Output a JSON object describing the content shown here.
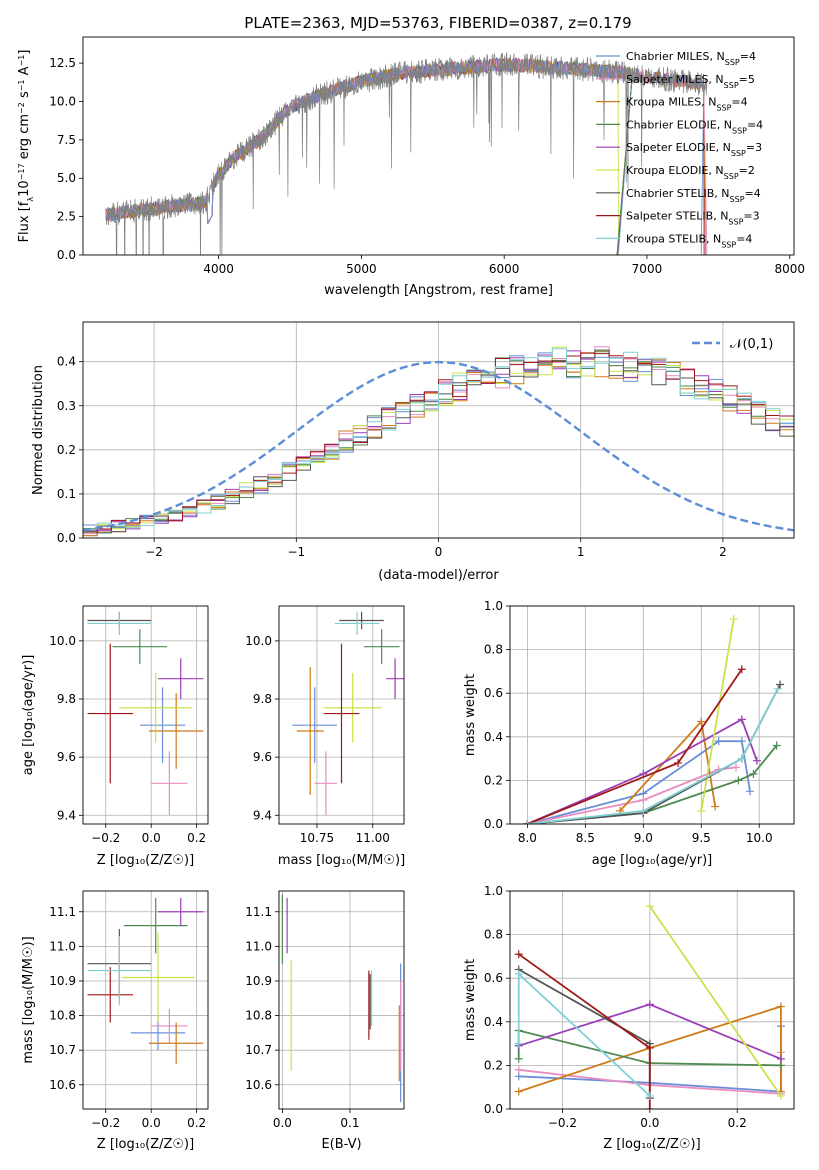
{
  "figure": {
    "title": "PLATE=2363, MJD=53763, FIBERID=0387, z=0.179"
  },
  "series_names": [
    "Chabrier MILES, N_SSP=4",
    "Salpeter MILES, N_SSP=5",
    "Kroupa MILES, N_SSP=4",
    "Chabrier ELODIE, N_SSP=4",
    "Salpeter ELODIE, N_SSP=3",
    "Kroupa ELODIE, N_SSP=2",
    "Chabrier STELIB, N_SSP=4",
    "Salpeter STELIB, N_SSP=3",
    "Kroupa STELIB, N_SSP=4"
  ],
  "series_colors": [
    "#6a8fd8",
    "#e98cc0",
    "#d07a1a",
    "#4e8a4e",
    "#9b3eb8",
    "#c9e24a",
    "#555555",
    "#a01818",
    "#7fd0d4"
  ],
  "chart_data": [
    {
      "type": "line",
      "title": "PLATE=2363, MJD=53763, FIBERID=0387, z=0.179",
      "xlabel": "wavelength [Angstrom, rest frame]",
      "ylabel": "Flux [f_λ 10^-17 erg cm^-2 s^-1 A^-1]",
      "xlim": [
        3050,
        8030
      ],
      "ylim": [
        0,
        14.2
      ],
      "xticks": [
        4000,
        5000,
        6000,
        7000,
        8000
      ],
      "yticks": [
        0.0,
        2.5,
        5.0,
        7.5,
        10.0,
        12.5
      ],
      "grid": false,
      "legend": "upper-right",
      "data_color": "#808080",
      "continuum": {
        "x": [
          3200,
          3500,
          3700,
          3900,
          4000,
          4100,
          4300,
          4500,
          4700,
          5000,
          5300,
          5600,
          6000,
          6400,
          6800,
          7000,
          7400
        ],
        "y": [
          2.6,
          3.0,
          3.2,
          3.4,
          5.2,
          6.3,
          7.6,
          9.6,
          10.4,
          11.3,
          11.9,
          12.1,
          12.4,
          12.2,
          11.9,
          11.6,
          11.1
        ]
      },
      "model_x_end": [
        7400,
        7400,
        7400,
        6900,
        6900,
        6800,
        6900,
        7400,
        6900
      ],
      "end_drop_x": [
        7380,
        7420,
        7410,
        6790,
        6795,
        6800,
        6790,
        7400,
        6800
      ]
    },
    {
      "type": "bar",
      "xlabel": "(data-model)/error",
      "ylabel": "Normed distribution",
      "xlim": [
        -2.5,
        2.5
      ],
      "ylim": [
        0,
        0.49
      ],
      "xticks": [
        -2,
        -1,
        0,
        1,
        2
      ],
      "yticks": [
        0.0,
        0.1,
        0.2,
        0.3,
        0.4
      ],
      "grid": true,
      "legend_label": "𝒩(0,1)",
      "legend_color": "#5b8ed6",
      "bin_width": 0.1,
      "bin_start": -2.5,
      "base_density": [
        0.018,
        0.022,
        0.027,
        0.032,
        0.038,
        0.045,
        0.053,
        0.061,
        0.071,
        0.082,
        0.094,
        0.107,
        0.121,
        0.136,
        0.151,
        0.167,
        0.184,
        0.201,
        0.218,
        0.235,
        0.252,
        0.269,
        0.285,
        0.301,
        0.316,
        0.33,
        0.343,
        0.355,
        0.366,
        0.375,
        0.383,
        0.39,
        0.395,
        0.398,
        0.399,
        0.399,
        0.398,
        0.395,
        0.39,
        0.383,
        0.375,
        0.366,
        0.355,
        0.343,
        0.33,
        0.316,
        0.301,
        0.285,
        0.269,
        0.252,
        0.235,
        0.218,
        0.201,
        0.184,
        0.167,
        0.151,
        0.136,
        0.121,
        0.107,
        0.094,
        0.082,
        0.071,
        0.061,
        0.053,
        0.045,
        0.038,
        0.032,
        0.027,
        0.022,
        0.018
      ]
    },
    {
      "type": "scatter",
      "xlabel": "Z [log10(Z/Z⊙)]",
      "ylabel": "age [log10(age/yr)]",
      "xlim": [
        -0.3,
        0.25
      ],
      "ylim": [
        9.37,
        10.12
      ],
      "xticks": [
        -0.2,
        0.0,
        0.2
      ],
      "yticks": [
        9.4,
        9.6,
        9.8,
        10.0
      ],
      "grid": true,
      "points": [
        {
          "s": 0,
          "x": 0.05,
          "y": 9.71,
          "xe": 0.1,
          "ye": 0.13
        },
        {
          "s": 1,
          "x": 0.08,
          "y": 9.51,
          "xe": 0.08,
          "ye": 0.11
        },
        {
          "s": 2,
          "x": 0.11,
          "y": 9.69,
          "xe": 0.12,
          "ye": 0.13
        },
        {
          "s": 3,
          "x": -0.05,
          "y": 9.98,
          "xe": 0.12,
          "ye": 0.06
        },
        {
          "s": 4,
          "x": 0.13,
          "y": 9.87,
          "xe": 0.1,
          "ye": 0.07
        },
        {
          "s": 5,
          "x": 0.02,
          "y": 9.77,
          "xe": 0.16,
          "ye": 0.12
        },
        {
          "s": 6,
          "x": -0.14,
          "y": 10.07,
          "xe": 0.14,
          "ye": 0.03
        },
        {
          "s": 7,
          "x": -0.18,
          "y": 9.75,
          "xe": 0.1,
          "ye": 0.24
        },
        {
          "s": 8,
          "x": -0.14,
          "y": 10.06,
          "xe": 0.14,
          "ye": 0.04
        }
      ]
    },
    {
      "type": "scatter",
      "xlabel": "mass [log10(M/M⊙)]",
      "ylabel": "",
      "xlim": [
        10.58,
        11.14
      ],
      "ylim": [
        9.37,
        10.12
      ],
      "xticks": [
        10.75,
        11.0
      ],
      "yticks": [
        9.4,
        9.6,
        9.8,
        10.0
      ],
      "grid": true,
      "points": [
        {
          "s": 0,
          "x": 10.74,
          "y": 9.71,
          "xe": 0.1,
          "ye": 0.13
        },
        {
          "s": 1,
          "x": 10.79,
          "y": 9.51,
          "xe": 0.05,
          "ye": 0.11
        },
        {
          "s": 2,
          "x": 10.72,
          "y": 9.69,
          "xe": 0.06,
          "ye": 0.22
        },
        {
          "s": 3,
          "x": 11.04,
          "y": 9.98,
          "xe": 0.08,
          "ye": 0.06
        },
        {
          "s": 4,
          "x": 11.1,
          "y": 9.87,
          "xe": 0.04,
          "ye": 0.07
        },
        {
          "s": 5,
          "x": 10.91,
          "y": 9.77,
          "xe": 0.13,
          "ye": 0.12
        },
        {
          "s": 6,
          "x": 10.95,
          "y": 10.07,
          "xe": 0.1,
          "ye": 0.03
        },
        {
          "s": 7,
          "x": 10.86,
          "y": 9.75,
          "xe": 0.08,
          "ye": 0.24
        },
        {
          "s": 8,
          "x": 10.93,
          "y": 10.06,
          "xe": 0.1,
          "ye": 0.04
        }
      ]
    },
    {
      "type": "line",
      "xlabel": "age [log10(age/yr)]",
      "ylabel": "mass weight",
      "xlim": [
        7.85,
        10.3
      ],
      "ylim": [
        0,
        1.0
      ],
      "xticks": [
        8.0,
        8.5,
        9.0,
        9.5,
        10.0
      ],
      "yticks": [
        0.0,
        0.2,
        0.4,
        0.6,
        0.8,
        1.0
      ],
      "grid": true,
      "series": [
        {
          "s": 0,
          "x": [
            8.0,
            9.0,
            9.65,
            9.85,
            9.92
          ],
          "y": [
            0.0,
            0.14,
            0.38,
            0.38,
            0.15
          ]
        },
        {
          "s": 1,
          "x": [
            8.0,
            9.0,
            9.65,
            9.8
          ],
          "y": [
            0.0,
            0.11,
            0.25,
            0.26
          ]
        },
        {
          "s": 2,
          "x": [
            8.8,
            9.5,
            9.62
          ],
          "y": [
            0.06,
            0.47,
            0.08
          ]
        },
        {
          "s": 3,
          "x": [
            8.0,
            9.0,
            9.82,
            9.95,
            10.15
          ],
          "y": [
            0.0,
            0.05,
            0.2,
            0.23,
            0.36
          ]
        },
        {
          "s": 4,
          "x": [
            8.0,
            9.0,
            9.85,
            9.98
          ],
          "y": [
            0.0,
            0.23,
            0.48,
            0.29
          ]
        },
        {
          "s": 5,
          "x": [
            9.5,
            9.78
          ],
          "y": [
            0.06,
            0.94
          ]
        },
        {
          "s": 6,
          "x": [
            8.0,
            9.0,
            9.85,
            10.18
          ],
          "y": [
            0.0,
            0.05,
            0.3,
            0.64
          ]
        },
        {
          "s": 7,
          "x": [
            8.0,
            9.3,
            9.85
          ],
          "y": [
            0.0,
            0.28,
            0.71
          ]
        },
        {
          "s": 8,
          "x": [
            8.0,
            9.0,
            9.85,
            10.16
          ],
          "y": [
            0.0,
            0.06,
            0.3,
            0.62
          ]
        }
      ]
    },
    {
      "type": "scatter",
      "xlabel": "Z [log10(Z/Z⊙)]",
      "ylabel": "mass [log10(M/M⊙)]",
      "xlim": [
        -0.3,
        0.25
      ],
      "ylim": [
        10.53,
        11.16
      ],
      "xticks": [
        -0.2,
        0.0,
        0.2
      ],
      "yticks": [
        10.6,
        10.7,
        10.8,
        10.9,
        11.0,
        11.1
      ],
      "grid": true,
      "points": [
        {
          "s": 0,
          "x": 0.03,
          "y": 10.75,
          "xe": 0.12,
          "ye": 0.05
        },
        {
          "s": 1,
          "x": 0.08,
          "y": 10.77,
          "xe": 0.08,
          "ye": 0.05
        },
        {
          "s": 2,
          "x": 0.11,
          "y": 10.72,
          "xe": 0.12,
          "ye": 0.06
        },
        {
          "s": 3,
          "x": 0.02,
          "y": 11.06,
          "xe": 0.14,
          "ye": 0.08
        },
        {
          "s": 4,
          "x": 0.13,
          "y": 11.1,
          "xe": 0.1,
          "ye": 0.04
        },
        {
          "s": 5,
          "x": 0.03,
          "y": 10.91,
          "xe": 0.16,
          "ye": 0.13
        },
        {
          "s": 6,
          "x": -0.14,
          "y": 10.95,
          "xe": 0.14,
          "ye": 0.1
        },
        {
          "s": 7,
          "x": -0.18,
          "y": 10.86,
          "xe": 0.1,
          "ye": 0.08
        },
        {
          "s": 8,
          "x": -0.14,
          "y": 10.93,
          "xe": 0.14,
          "ye": 0.1
        }
      ]
    },
    {
      "type": "scatter",
      "xlabel": "E(B-V)",
      "ylabel": "",
      "xlim": [
        -0.005,
        0.18
      ],
      "ylim": [
        10.53,
        11.16
      ],
      "xticks": [
        0.0,
        0.1
      ],
      "yticks": [
        10.6,
        10.7,
        10.8,
        10.9,
        11.0,
        11.1
      ],
      "grid": true,
      "points": [
        {
          "s": 0,
          "x": 0.175,
          "y": 10.75,
          "xe": 0.0,
          "ye": 0.2
        },
        {
          "s": 1,
          "x": 0.175,
          "y": 10.77,
          "xe": 0.0,
          "ye": 0.13
        },
        {
          "s": 2,
          "x": 0.173,
          "y": 10.72,
          "xe": 0.0,
          "ye": 0.11
        },
        {
          "s": 3,
          "x": 0.0,
          "y": 11.05,
          "xe": 0.0,
          "ye": 0.1
        },
        {
          "s": 4,
          "x": 0.007,
          "y": 11.06,
          "xe": 0.0,
          "ye": 0.08
        },
        {
          "s": 5,
          "x": 0.013,
          "y": 10.8,
          "xe": 0.0,
          "ye": 0.16
        },
        {
          "s": 6,
          "x": 0.13,
          "y": 10.84,
          "xe": 0.0,
          "ye": 0.08
        },
        {
          "s": 7,
          "x": 0.128,
          "y": 10.83,
          "xe": 0.0,
          "ye": 0.1
        },
        {
          "s": 8,
          "x": 0.132,
          "y": 10.85,
          "xe": 0.0,
          "ye": 0.08
        }
      ]
    },
    {
      "type": "line",
      "xlabel": "Z [log10(Z/Z⊙)]",
      "ylabel": "mass weight",
      "xlim": [
        -0.32,
        0.33
      ],
      "ylim": [
        0,
        1.0
      ],
      "xticks": [
        -0.2,
        0.0,
        0.2
      ],
      "yticks": [
        0.0,
        0.2,
        0.4,
        0.6,
        0.8,
        1.0
      ],
      "grid": true,
      "series": [
        {
          "s": 0,
          "x": [
            -0.3,
            0.0,
            0.3,
            0.3
          ],
          "y": [
            0.15,
            0.12,
            0.08,
            0.38
          ]
        },
        {
          "s": 1,
          "x": [
            -0.3,
            0.0,
            0.3,
            0.3
          ],
          "y": [
            0.18,
            0.11,
            0.07,
            0.26
          ]
        },
        {
          "s": 2,
          "x": [
            -0.3,
            0.0,
            0.3,
            0.3
          ],
          "y": [
            0.08,
            0.28,
            0.47,
            0.08
          ]
        },
        {
          "s": 3,
          "x": [
            -0.3,
            -0.3,
            0.0,
            0.3
          ],
          "y": [
            0.23,
            0.36,
            0.21,
            0.2
          ]
        },
        {
          "s": 4,
          "x": [
            -0.3,
            0.0,
            0.3
          ],
          "y": [
            0.29,
            0.48,
            0.23
          ]
        },
        {
          "s": 5,
          "x": [
            0.0,
            0.3
          ],
          "y": [
            0.93,
            0.06
          ]
        },
        {
          "s": 6,
          "x": [
            -0.3,
            0.0,
            0.0
          ],
          "y": [
            0.64,
            0.3,
            0.05
          ]
        },
        {
          "s": 7,
          "x": [
            -0.3,
            0.0,
            0.0
          ],
          "y": [
            0.71,
            0.28,
            0.0
          ]
        },
        {
          "s": 8,
          "x": [
            -0.3,
            -0.3,
            0.0
          ],
          "y": [
            0.3,
            0.62,
            0.06
          ]
        }
      ]
    }
  ]
}
